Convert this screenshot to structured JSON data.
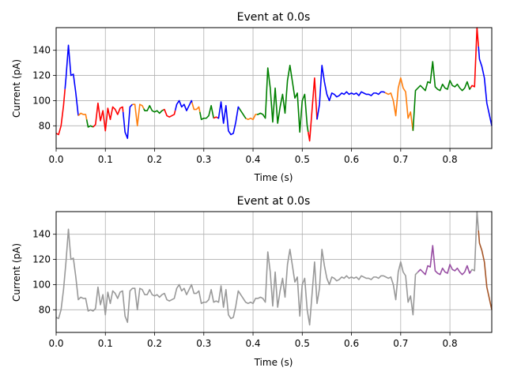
{
  "chart_data": [
    {
      "type": "line",
      "title": "Event at 0.0s",
      "xlabel": "Time (s)",
      "ylabel": "Current (pA)",
      "xlim": [
        0.0,
        0.885
      ],
      "ylim": [
        62,
        158
      ],
      "xticks": [
        0.0,
        0.1,
        0.2,
        0.3,
        0.4,
        0.5,
        0.6,
        0.7,
        0.8
      ],
      "xtick_labels": [
        "0.0",
        "0.1",
        "0.2",
        "0.3",
        "0.4",
        "0.5",
        "0.6",
        "0.7",
        "0.8"
      ],
      "yticks": [
        80,
        100,
        120,
        140
      ],
      "ytick_labels": [
        "80",
        "100",
        "120",
        "140"
      ],
      "grid": true,
      "trace": {
        "x": [
          0.0,
          0.005,
          0.01,
          0.015,
          0.02,
          0.025,
          0.03,
          0.035,
          0.04,
          0.045,
          0.05,
          0.055,
          0.06,
          0.065,
          0.07,
          0.075,
          0.08,
          0.085,
          0.09,
          0.095,
          0.1,
          0.105,
          0.11,
          0.115,
          0.12,
          0.125,
          0.13,
          0.135,
          0.14,
          0.145,
          0.15,
          0.155,
          0.16,
          0.165,
          0.17,
          0.175,
          0.18,
          0.185,
          0.19,
          0.195,
          0.2,
          0.205,
          0.21,
          0.215,
          0.22,
          0.225,
          0.23,
          0.235,
          0.24,
          0.245,
          0.25,
          0.255,
          0.26,
          0.265,
          0.27,
          0.275,
          0.28,
          0.285,
          0.29,
          0.295,
          0.3,
          0.305,
          0.31,
          0.315,
          0.32,
          0.325,
          0.33,
          0.335,
          0.34,
          0.345,
          0.35,
          0.355,
          0.36,
          0.365,
          0.37,
          0.375,
          0.38,
          0.385,
          0.39,
          0.395,
          0.4,
          0.405,
          0.41,
          0.415,
          0.42,
          0.425,
          0.43,
          0.435,
          0.44,
          0.445,
          0.45,
          0.455,
          0.46,
          0.465,
          0.47,
          0.475,
          0.48,
          0.485,
          0.49,
          0.495,
          0.5,
          0.505,
          0.51,
          0.515,
          0.52,
          0.525,
          0.53,
          0.535,
          0.54,
          0.545,
          0.55,
          0.555,
          0.56,
          0.565,
          0.57,
          0.575,
          0.58,
          0.585,
          0.59,
          0.595,
          0.6,
          0.605,
          0.61,
          0.615,
          0.62,
          0.625,
          0.63,
          0.635,
          0.64,
          0.645,
          0.65,
          0.655,
          0.66,
          0.665,
          0.67,
          0.675,
          0.68,
          0.685,
          0.69,
          0.695,
          0.7,
          0.705,
          0.71,
          0.715,
          0.72,
          0.725,
          0.73,
          0.735,
          0.74,
          0.745,
          0.75,
          0.755,
          0.76,
          0.765,
          0.77,
          0.775,
          0.78,
          0.785,
          0.79,
          0.795,
          0.8,
          0.805,
          0.81,
          0.815,
          0.82,
          0.825,
          0.83,
          0.835,
          0.84,
          0.845,
          0.85,
          0.855,
          0.86,
          0.865,
          0.87,
          0.875,
          0.88,
          0.885
        ],
        "y": [
          74,
          73,
          80,
          96,
          118,
          144,
          120,
          121,
          106,
          88,
          90,
          89,
          89,
          79,
          80,
          79,
          81,
          98,
          84,
          92,
          76,
          94,
          85,
          95,
          93,
          89,
          94,
          95,
          75,
          70,
          95,
          97,
          97,
          80,
          97,
          96,
          92,
          92,
          96,
          92,
          91,
          92,
          90,
          92,
          93,
          88,
          87,
          88,
          89,
          97,
          100,
          95,
          97,
          92,
          96,
          100,
          93,
          93,
          95,
          85,
          86,
          86,
          88,
          96,
          86,
          87,
          86,
          99,
          82,
          96,
          76,
          73,
          74,
          83,
          95,
          92,
          89,
          86,
          85,
          86,
          85,
          89,
          89,
          90,
          89,
          86,
          126,
          110,
          83,
          110,
          82,
          95,
          105,
          90,
          116,
          128,
          115,
          102,
          106,
          75,
          100,
          105,
          80,
          68,
          93,
          118,
          85,
          97,
          128,
          115,
          105,
          100,
          106,
          105,
          103,
          104,
          106,
          105,
          107,
          105,
          106,
          105,
          106,
          104,
          107,
          106,
          105,
          105,
          104,
          106,
          106,
          105,
          107,
          107,
          106,
          105,
          106,
          100,
          88,
          110,
          118,
          110,
          107,
          86,
          91,
          76,
          108,
          110,
          112,
          110,
          108,
          115,
          114,
          131,
          111,
          109,
          108,
          113,
          110,
          109,
          116,
          112,
          111,
          113,
          110,
          108,
          110,
          115,
          109,
          112,
          111,
          158,
          133,
          127,
          118,
          98,
          89,
          80
        ],
        "segments_top": [
          {
            "from": 0.0,
            "to": 0.018,
            "color": "#ff0000"
          },
          {
            "from": 0.018,
            "to": 0.045,
            "color": "#0000ff"
          },
          {
            "from": 0.045,
            "to": 0.062,
            "color": "#ff7f0e"
          },
          {
            "from": 0.062,
            "to": 0.075,
            "color": "#008000"
          },
          {
            "from": 0.075,
            "to": 0.136,
            "color": "#ff0000"
          },
          {
            "from": 0.136,
            "to": 0.155,
            "color": "#0000ff"
          },
          {
            "from": 0.155,
            "to": 0.178,
            "color": "#ff7f0e"
          },
          {
            "from": 0.178,
            "to": 0.218,
            "color": "#008000"
          },
          {
            "from": 0.218,
            "to": 0.242,
            "color": "#ff0000"
          },
          {
            "from": 0.242,
            "to": 0.276,
            "color": "#0000ff"
          },
          {
            "from": 0.276,
            "to": 0.292,
            "color": "#ff7f0e"
          },
          {
            "from": 0.292,
            "to": 0.32,
            "color": "#008000"
          },
          {
            "from": 0.32,
            "to": 0.328,
            "color": "#ff0000"
          },
          {
            "from": 0.328,
            "to": 0.372,
            "color": "#0000ff"
          },
          {
            "from": 0.372,
            "to": 0.386,
            "color": "#008000"
          },
          {
            "from": 0.386,
            "to": 0.408,
            "color": "#ff7f0e"
          },
          {
            "from": 0.408,
            "to": 0.512,
            "color": "#008000"
          },
          {
            "from": 0.512,
            "to": 0.53,
            "color": "#ff0000"
          },
          {
            "from": 0.53,
            "to": 0.668,
            "color": "#0000ff"
          },
          {
            "from": 0.668,
            "to": 0.725,
            "color": "#ff7f0e"
          },
          {
            "from": 0.725,
            "to": 0.842,
            "color": "#008000"
          },
          {
            "from": 0.842,
            "to": 0.858,
            "color": "#ff0000"
          },
          {
            "from": 0.858,
            "to": 0.885,
            "color": "#0000ff"
          }
        ]
      }
    },
    {
      "type": "line",
      "title": "Event at 0.0s",
      "xlabel": "Time (s)",
      "ylabel": "Current (pA)",
      "xlim": [
        0.0,
        0.885
      ],
      "ylim": [
        62,
        158
      ],
      "xticks": [
        0.0,
        0.1,
        0.2,
        0.3,
        0.4,
        0.5,
        0.6,
        0.7,
        0.8
      ],
      "xtick_labels": [
        "0.0",
        "0.1",
        "0.2",
        "0.3",
        "0.4",
        "0.5",
        "0.6",
        "0.7",
        "0.8"
      ],
      "yticks": [
        80,
        100,
        120,
        140
      ],
      "ytick_labels": [
        "80",
        "100",
        "120",
        "140"
      ],
      "grid": true,
      "segments_bottom": [
        {
          "from": 0.0,
          "to": 0.735,
          "color": "#999999"
        },
        {
          "from": 0.735,
          "to": 0.843,
          "color": "#984ea3"
        },
        {
          "from": 0.843,
          "to": 0.858,
          "color": "#999999"
        },
        {
          "from": 0.858,
          "to": 0.885,
          "color": "#a65628"
        }
      ]
    }
  ]
}
